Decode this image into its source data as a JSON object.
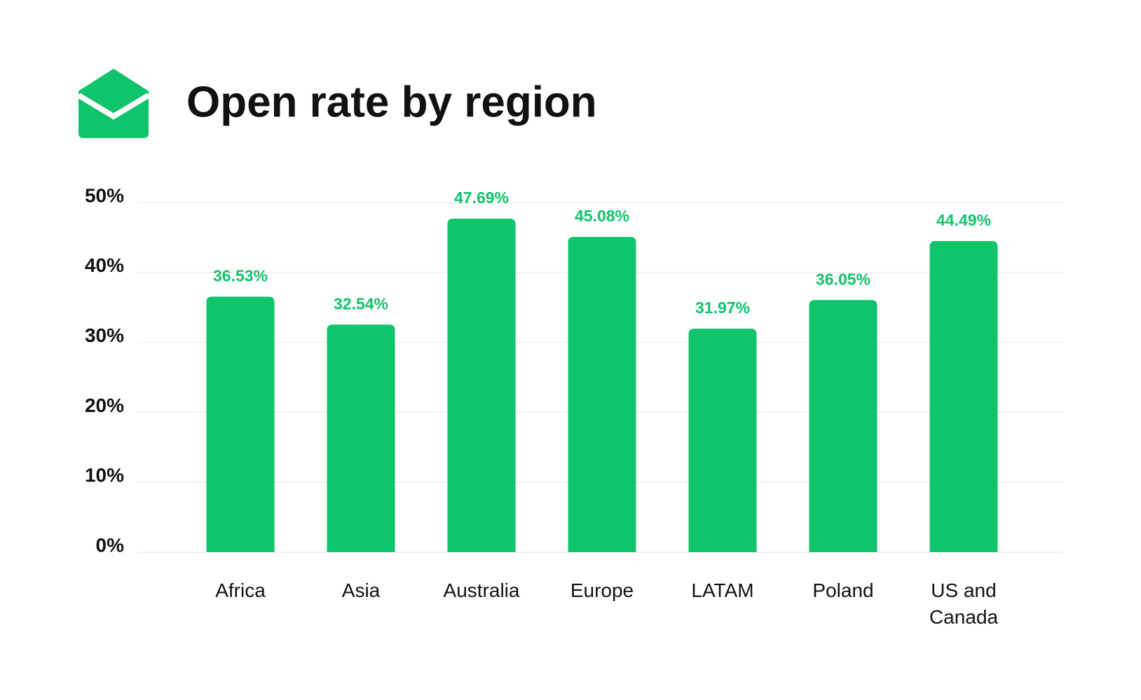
{
  "chart_data": {
    "type": "bar",
    "title": "Open rate by region",
    "categories": [
      "Africa",
      "Asia",
      "Australia",
      "Europe",
      "LATAM",
      "Poland",
      "US and Canada"
    ],
    "values": [
      36.53,
      32.54,
      47.69,
      45.08,
      31.97,
      36.05,
      44.49
    ],
    "value_labels": [
      "36.53%",
      "32.54%",
      "47.69%",
      "45.08%",
      "31.97%",
      "36.05%",
      "44.49%"
    ],
    "color": "#0fc46b",
    "ylim": [
      0,
      50
    ],
    "yticks": [
      {
        "value": 0,
        "label": "0%"
      },
      {
        "value": 10,
        "label": "10%"
      },
      {
        "value": 20,
        "label": "20%"
      },
      {
        "value": 30,
        "label": "30%"
      },
      {
        "value": 40,
        "label": "40%"
      },
      {
        "value": 50,
        "label": "50%"
      }
    ],
    "grid": true
  }
}
